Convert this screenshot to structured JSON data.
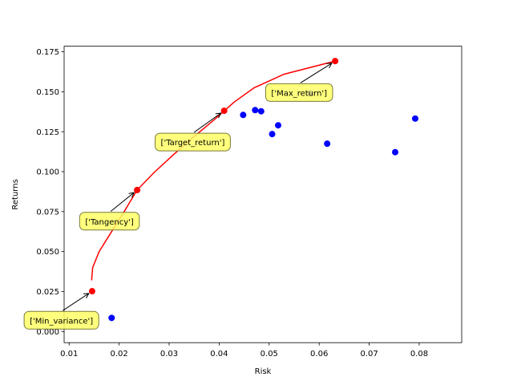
{
  "chart_data": {
    "type": "scatter",
    "title": "",
    "xlabel": "Risk",
    "ylabel": "Returns",
    "xlim": [
      0.009,
      0.0885
    ],
    "ylim": [
      -0.007,
      0.1785
    ],
    "x_ticks": [
      {
        "value": 0.01,
        "label": "0.01"
      },
      {
        "value": 0.02,
        "label": "0.02"
      },
      {
        "value": 0.03,
        "label": "0.03"
      },
      {
        "value": 0.04,
        "label": "0.04"
      },
      {
        "value": 0.05,
        "label": "0.05"
      },
      {
        "value": 0.06,
        "label": "0.06"
      },
      {
        "value": 0.07,
        "label": "0.07"
      },
      {
        "value": 0.08,
        "label": "0.08"
      }
    ],
    "y_ticks": [
      {
        "value": 0.0,
        "label": "0.000"
      },
      {
        "value": 0.025,
        "label": "0.025"
      },
      {
        "value": 0.05,
        "label": "0.050"
      },
      {
        "value": 0.075,
        "label": "0.075"
      },
      {
        "value": 0.1,
        "label": "0.100"
      },
      {
        "value": 0.125,
        "label": "0.125"
      },
      {
        "value": 0.15,
        "label": "0.150"
      },
      {
        "value": 0.175,
        "label": "0.175"
      }
    ],
    "grid": false,
    "legend": "none",
    "colors": {
      "assets": "#0000ff",
      "portfolios": "#ff0000",
      "frontier": "#ff0000",
      "annotation_fill": "#ffff66",
      "annotation_edge": "#7a7a3a",
      "hidden_marker": "#808080"
    },
    "assets": [
      {
        "x": 0.0448,
        "y": 0.1355
      },
      {
        "x": 0.0472,
        "y": 0.1385
      },
      {
        "x": 0.0484,
        "y": 0.1378
      },
      {
        "x": 0.0506,
        "y": 0.1235
      },
      {
        "x": 0.0518,
        "y": 0.129
      },
      {
        "x": 0.0582,
        "y": 0.149
      },
      {
        "x": 0.0616,
        "y": 0.1175
      },
      {
        "x": 0.0752,
        "y": 0.1122
      },
      {
        "x": 0.0792,
        "y": 0.1332
      },
      {
        "x": 0.0185,
        "y": 0.0085
      }
    ],
    "frontier": [
      {
        "x": 0.0145,
        "y": 0.032
      },
      {
        "x": 0.0147,
        "y": 0.04
      },
      {
        "x": 0.016,
        "y": 0.05
      },
      {
        "x": 0.0185,
        "y": 0.0625
      },
      {
        "x": 0.021,
        "y": 0.075
      },
      {
        "x": 0.0236,
        "y": 0.0885
      },
      {
        "x": 0.027,
        "y": 0.0995
      },
      {
        "x": 0.031,
        "y": 0.111
      },
      {
        "x": 0.035,
        "y": 0.122
      },
      {
        "x": 0.039,
        "y": 0.1325
      },
      {
        "x": 0.041,
        "y": 0.138
      },
      {
        "x": 0.043,
        "y": 0.1435
      },
      {
        "x": 0.047,
        "y": 0.1525
      },
      {
        "x": 0.053,
        "y": 0.161
      },
      {
        "x": 0.0632,
        "y": 0.1692
      }
    ],
    "portfolios": [
      {
        "label": "['Min_variance']",
        "x": 0.0146,
        "y": 0.0252,
        "text_x": 0.001,
        "text_y": 0.007
      },
      {
        "label": "['Tangency']",
        "x": 0.0236,
        "y": 0.0885,
        "text_x": 0.0121,
        "text_y": 0.069
      },
      {
        "label": "['Target_return']",
        "x": 0.041,
        "y": 0.1381,
        "text_x": 0.0272,
        "text_y": 0.1185
      },
      {
        "label": "['Max_return']",
        "x": 0.0632,
        "y": 0.1692,
        "text_x": 0.0493,
        "text_y": 0.1495
      }
    ]
  }
}
